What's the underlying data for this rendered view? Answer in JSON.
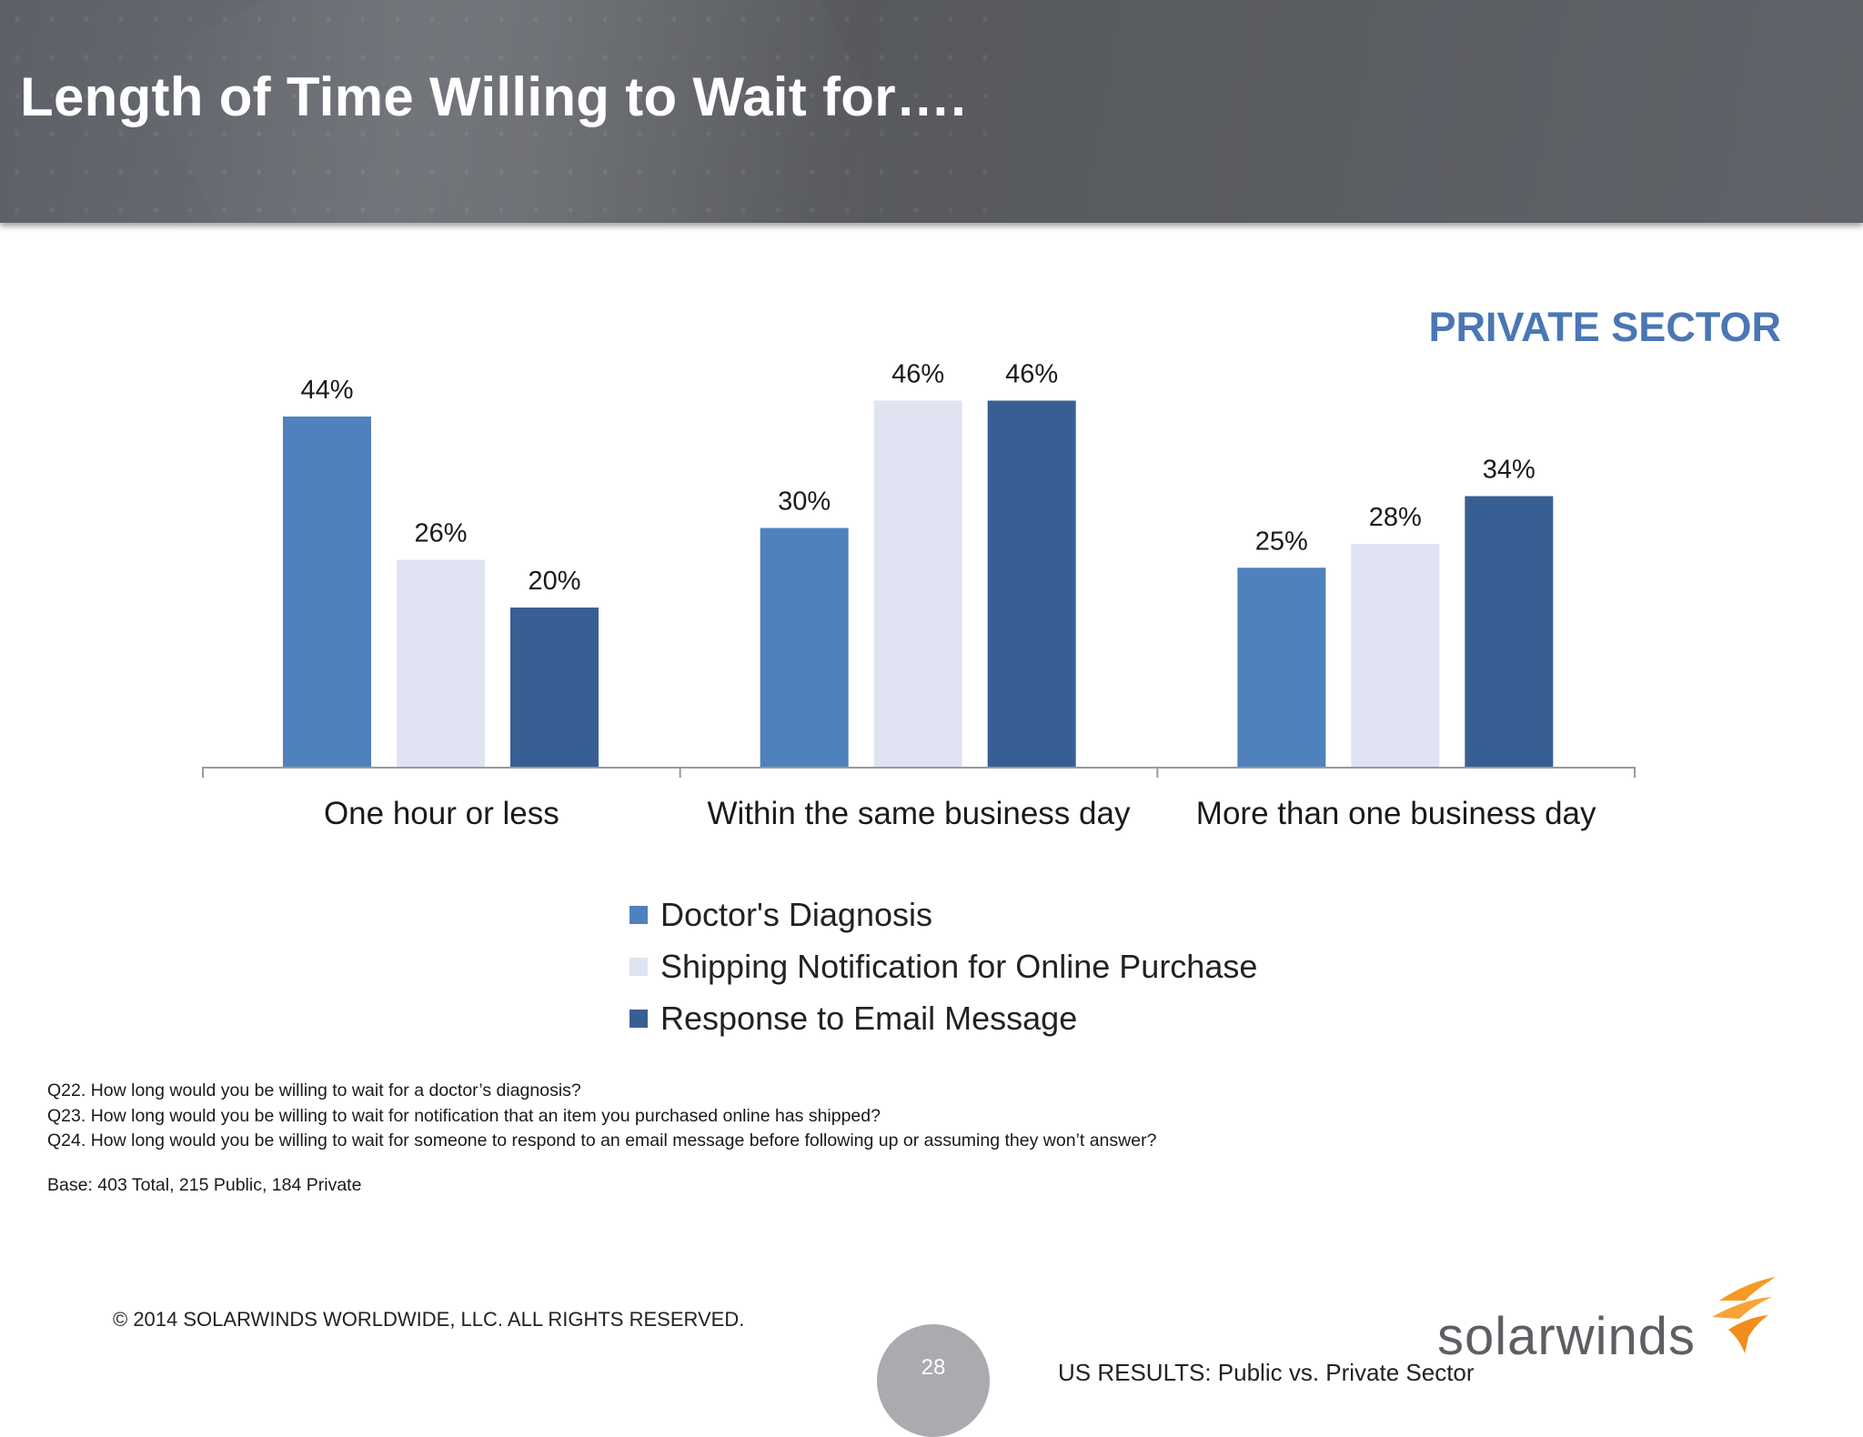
{
  "header": {
    "title": "Length of Time Willing to Wait for…."
  },
  "sector_label": "PRIVATE SECTOR",
  "colors": {
    "doctor": "#4f81bd",
    "shipping": "#dfe3f2",
    "email": "#385f93",
    "axis": "#9a9a9a",
    "sector": "#4a77b4"
  },
  "chart_data": {
    "type": "bar",
    "title": "",
    "xlabel": "",
    "ylabel": "",
    "ylim": [
      0,
      50
    ],
    "grid": false,
    "legend_position": "bottom",
    "categories": [
      "One hour or less",
      "Within the same business day",
      "More than one business day"
    ],
    "series": [
      {
        "name": "Doctor's Diagnosis",
        "values": [
          44,
          30,
          25
        ],
        "labels": [
          "44%",
          "30%",
          "25%"
        ],
        "color": "#4f81bd"
      },
      {
        "name": "Shipping Notification for Online Purchase",
        "values": [
          26,
          46,
          28
        ],
        "labels": [
          "26%",
          "46%",
          "28%"
        ],
        "color": "#dfe3f2"
      },
      {
        "name": "Response to Email Message",
        "values": [
          20,
          46,
          34
        ],
        "labels": [
          "20%",
          "46%",
          "34%"
        ],
        "color": "#385f93"
      }
    ]
  },
  "footnotes": {
    "q22": "Q22. How long would you be willing to wait for a doctor’s diagnosis?",
    "q23": "Q23. How long would you be willing to wait for notification that an item you purchased online has shipped?",
    "q24": "Q24. How long would you be willing to wait for someone to respond to an email message before following up or assuming they won’t answer?",
    "base": "Base:  403  Total, 215 Public, 184 Private"
  },
  "footer": {
    "copyright": "© 2014 SOLARWINDS WORLDWIDE, LLC.  ALL RIGHTS RESERVED.",
    "page_number": "28",
    "label": "US RESULTS:  Public vs. Private Sector",
    "logo_text": "solarwinds"
  }
}
